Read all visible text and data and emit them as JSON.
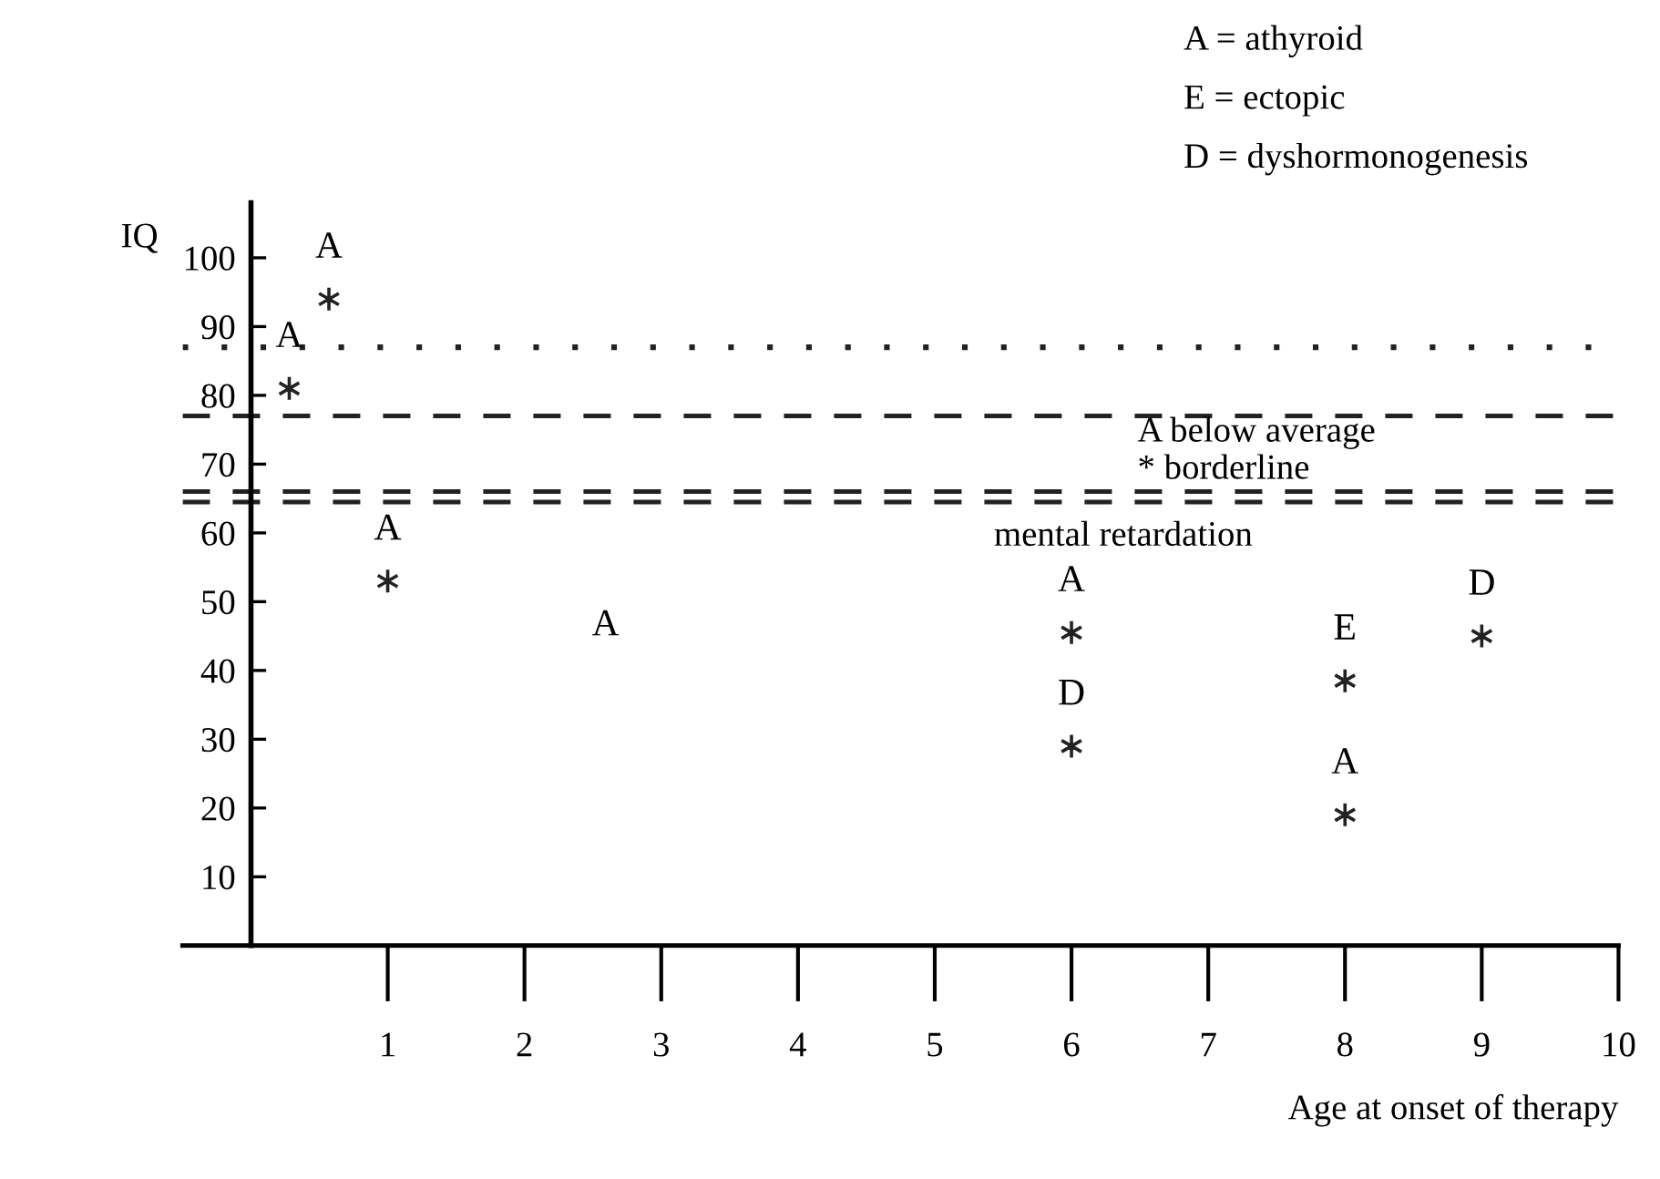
{
  "chart_data": {
    "type": "scatter",
    "xlabel": "Age at onset of therapy",
    "ylabel": "IQ",
    "x": [
      0.57,
      0.28,
      1,
      6,
      6,
      8,
      8,
      9
    ],
    "series": [
      {
        "color": "#222222",
        "values": [
          94,
          81,
          53,
          45.5,
          29,
          38.5,
          19,
          45
        ]
      }
    ],
    "marker": "cross",
    "xlim": [
      -0.5,
      10
    ],
    "ylim": [
      0,
      108
    ],
    "xticks": [
      1,
      2,
      3,
      4,
      5,
      6,
      7,
      8,
      9,
      10
    ],
    "yticks": [
      10,
      20,
      30,
      40,
      50,
      60,
      70,
      80,
      90,
      100
    ],
    "grid": false,
    "legend": false,
    "ref_lines": [
      {
        "axis": "y",
        "value": 87,
        "line_style": "dotted",
        "color": "#222222"
      },
      {
        "axis": "y",
        "value": 77,
        "line_style": "dashed",
        "color": "#222222"
      },
      {
        "axis": "y",
        "value": 66,
        "line_style": "dashed",
        "color": "#222222"
      },
      {
        "axis": "y",
        "value": 64.5,
        "line_style": "dashed",
        "color": "#222222"
      }
    ],
    "value_labels": [
      "A",
      "A",
      "A",
      "A",
      "D",
      "E",
      "A",
      "D"
    ],
    "annotations": [
      "A = athyroid",
      "E = ectopic",
      "D = dyshormonogenesis",
      "A",
      "A below average",
      "* borderline",
      "mental retardation"
    ]
  }
}
